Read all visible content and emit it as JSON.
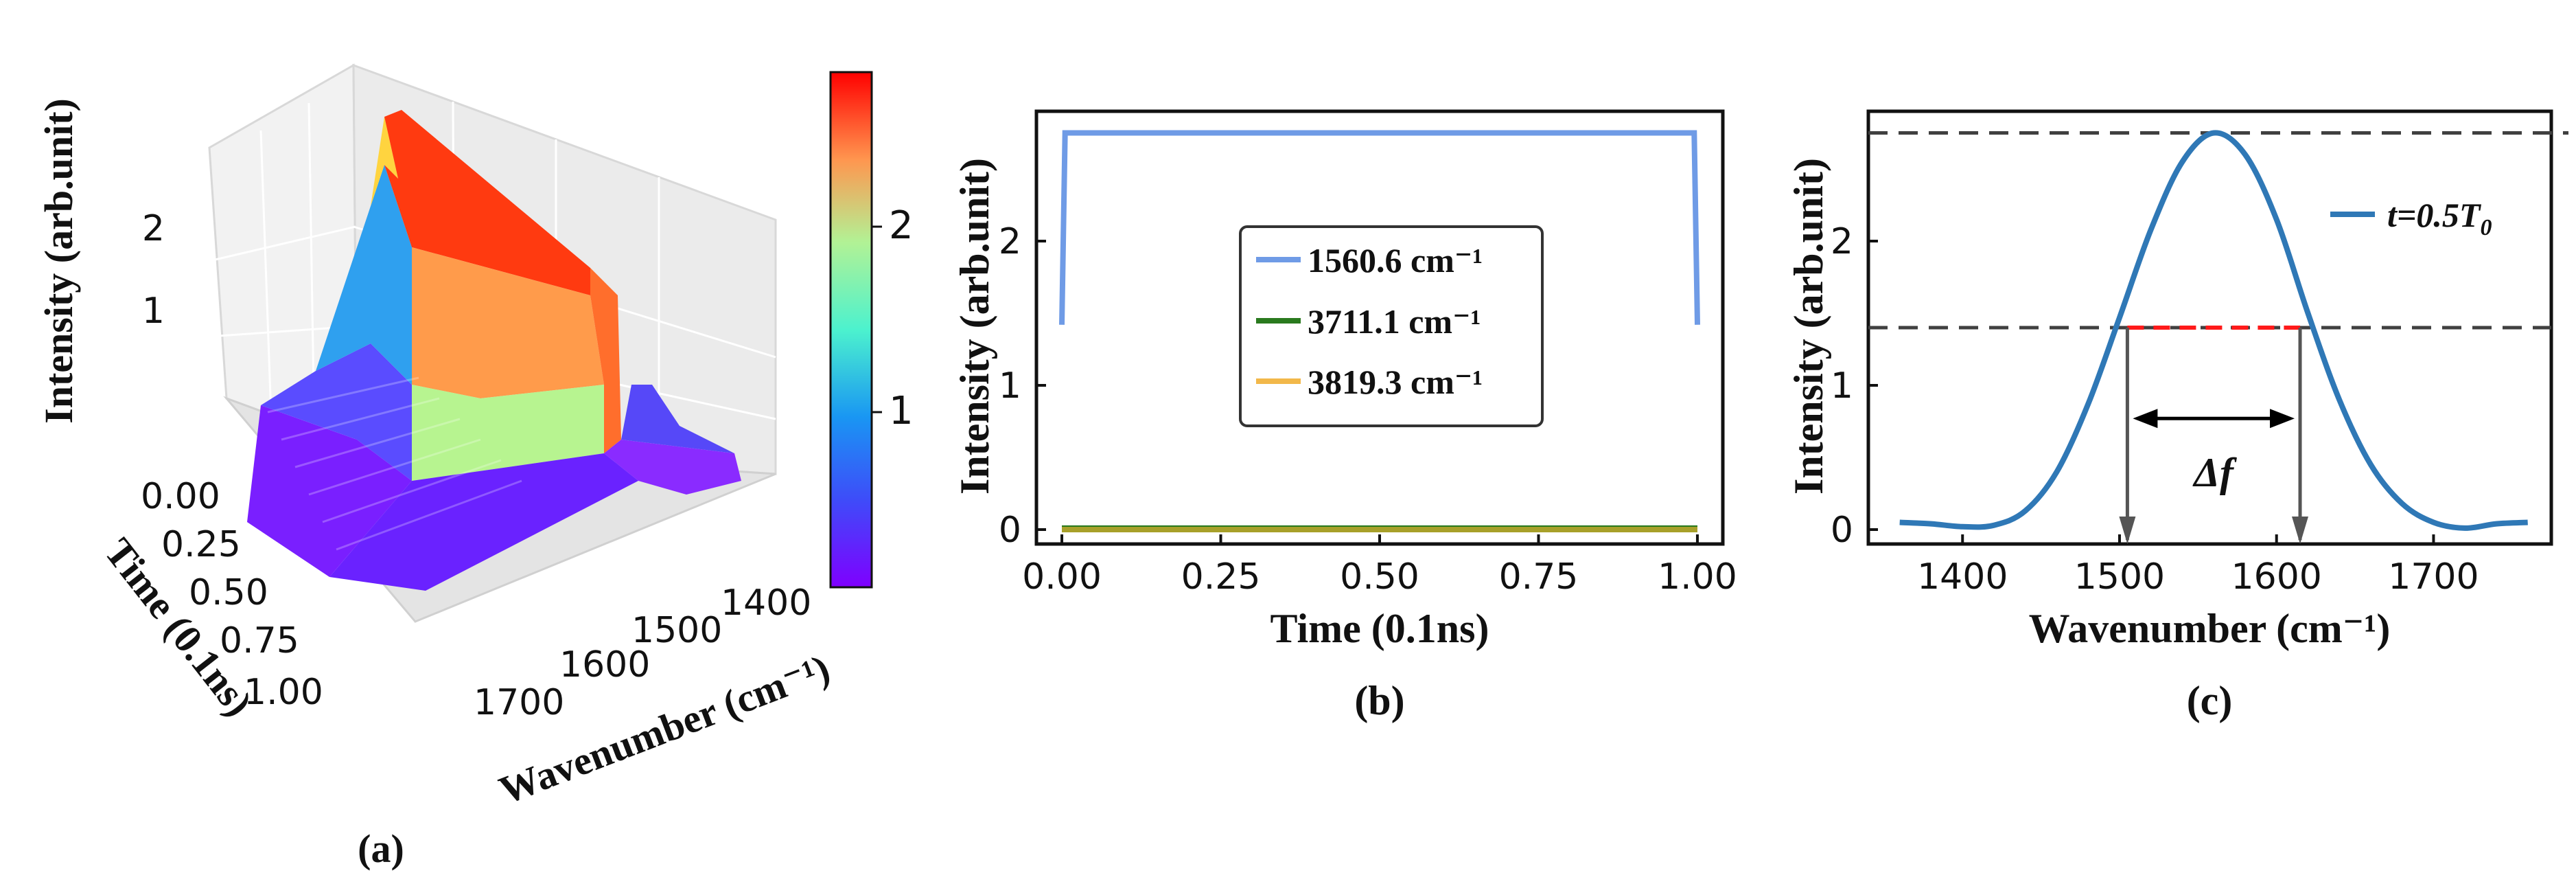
{
  "colors": {
    "blue_line": "#6f9be6",
    "green_line": "#2a7a1e",
    "olive_line": "#a8a02a",
    "curve_c": "#2f78b6",
    "fwhm_red": "#ff1a1a",
    "dash_gray": "#404040"
  },
  "chart_data": [
    {
      "panel": "a",
      "type": "surface",
      "caption": "(a)",
      "zlabel": "Intensity (arb.unit)",
      "ylabel": "Time (0.1ns)",
      "xlabel": "Wavenumber (cm⁻¹)",
      "ztick_labels": [
        "1",
        "2"
      ],
      "ytick_labels": [
        "0.00",
        "0.25",
        "0.50",
        "0.75",
        "1.00"
      ],
      "xtick_labels": [
        "1400",
        "1500",
        "1600",
        "1700"
      ],
      "colorbar": {
        "ticks": [
          1,
          2
        ],
        "tick_labels": [
          "1",
          "2"
        ],
        "range": [
          0,
          2.75
        ],
        "colormap": "rainbow"
      },
      "surface": {
        "peak_wavenumber": 1560.6,
        "peak_intensity": 2.75,
        "fwhm_half": 1.4,
        "time_range": [
          0,
          1
        ],
        "wavenumber_range": [
          1360,
          1760
        ]
      }
    },
    {
      "panel": "b",
      "type": "line",
      "caption": "(b)",
      "xlabel": "Time (0.1ns)",
      "ylabel": "Intensity (arb.unit)",
      "xlim": [
        -0.04,
        1.04
      ],
      "ylim": [
        -0.1,
        2.9
      ],
      "xticks": [
        0,
        0.25,
        0.5,
        0.75,
        1.0
      ],
      "xtick_labels": [
        "0.00",
        "0.25",
        "0.50",
        "0.75",
        "1.00"
      ],
      "yticks": [
        0,
        1,
        2
      ],
      "ytick_labels": [
        "0",
        "1",
        "2"
      ],
      "series": [
        {
          "name": "1560.6 cm⁻¹",
          "x": [
            0,
            0.005,
            0.995,
            1.0
          ],
          "y": [
            1.42,
            2.75,
            2.75,
            1.42
          ]
        },
        {
          "name": "3711.1 cm⁻¹",
          "x": [
            0,
            1
          ],
          "y": [
            0.01,
            0.01
          ]
        },
        {
          "name": "3819.3 cm⁻¹",
          "x": [
            0,
            1
          ],
          "y": [
            0.0,
            0.0
          ]
        }
      ],
      "legend": [
        {
          "label": "1560.6 cm⁻¹"
        },
        {
          "label": "3711.1 cm⁻¹"
        },
        {
          "label": "3819.3 cm⁻¹"
        }
      ]
    },
    {
      "panel": "c",
      "type": "line",
      "caption": "(c)",
      "xlabel": "Wavenumber (cm⁻¹)",
      "ylabel": "Intensity (arb.unit)",
      "xlim": [
        1340,
        1775
      ],
      "ylim": [
        -0.1,
        2.9
      ],
      "xticks": [
        1400,
        1500,
        1600,
        1700
      ],
      "xtick_labels": [
        "1400",
        "1500",
        "1600",
        "1700"
      ],
      "yticks": [
        0,
        1,
        2
      ],
      "ytick_labels": [
        "0",
        "1",
        "2"
      ],
      "series": [
        {
          "name": "t=0.5T0",
          "x": [
            1360,
            1380,
            1400,
            1420,
            1440,
            1460,
            1480,
            1500,
            1520,
            1540,
            1560,
            1580,
            1600,
            1620,
            1640,
            1660,
            1680,
            1700,
            1720,
            1740,
            1760
          ],
          "y": [
            0.05,
            0.04,
            0.02,
            0.03,
            0.13,
            0.4,
            0.87,
            1.47,
            2.08,
            2.55,
            2.75,
            2.6,
            2.15,
            1.5,
            0.9,
            0.45,
            0.18,
            0.05,
            0.01,
            0.04,
            0.05
          ]
        }
      ],
      "legend": [
        {
          "label": "t=0.5T",
          "subscript": "0"
        }
      ],
      "annotations": {
        "peak_value": 2.75,
        "half_value": 1.4,
        "fwhm_x": [
          1505,
          1615
        ],
        "delta_label": "Δf"
      }
    }
  ]
}
